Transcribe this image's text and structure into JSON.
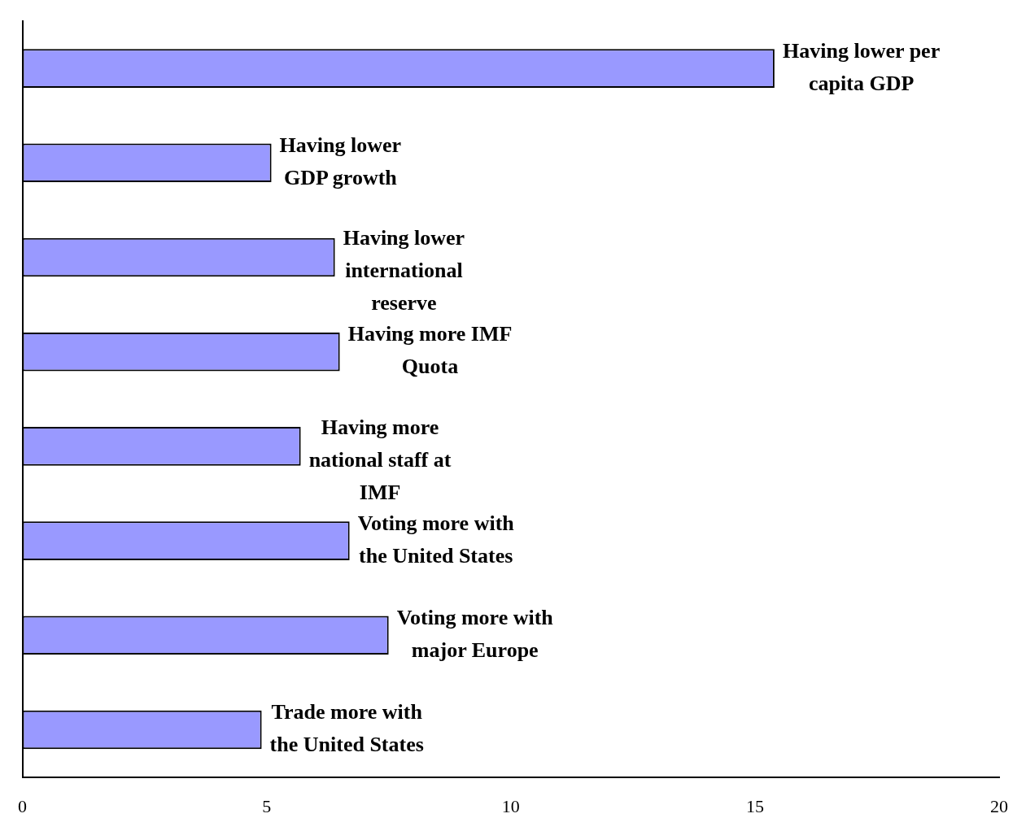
{
  "chart_data": {
    "type": "bar",
    "orientation": "horizontal",
    "categories": [
      "Having lower per\ncapita GDP",
      "Having lower\nGDP growth",
      "Having lower\ninternational\nreserve",
      "Having more IMF\nQuota",
      "Having more\nnational staff at\nIMF",
      "Voting more with\nthe United States",
      "Voting more with\nmajor Europe",
      "Trade more with\nthe United States"
    ],
    "values": [
      15.4,
      5.1,
      6.4,
      6.5,
      5.7,
      6.7,
      7.5,
      4.9
    ],
    "color": "#9999ff",
    "xlim": [
      0,
      20
    ],
    "xticks": [
      0,
      5,
      10,
      15,
      20
    ],
    "grid": false,
    "legend": false,
    "tick_labels": "x",
    "data_labels": false
  }
}
